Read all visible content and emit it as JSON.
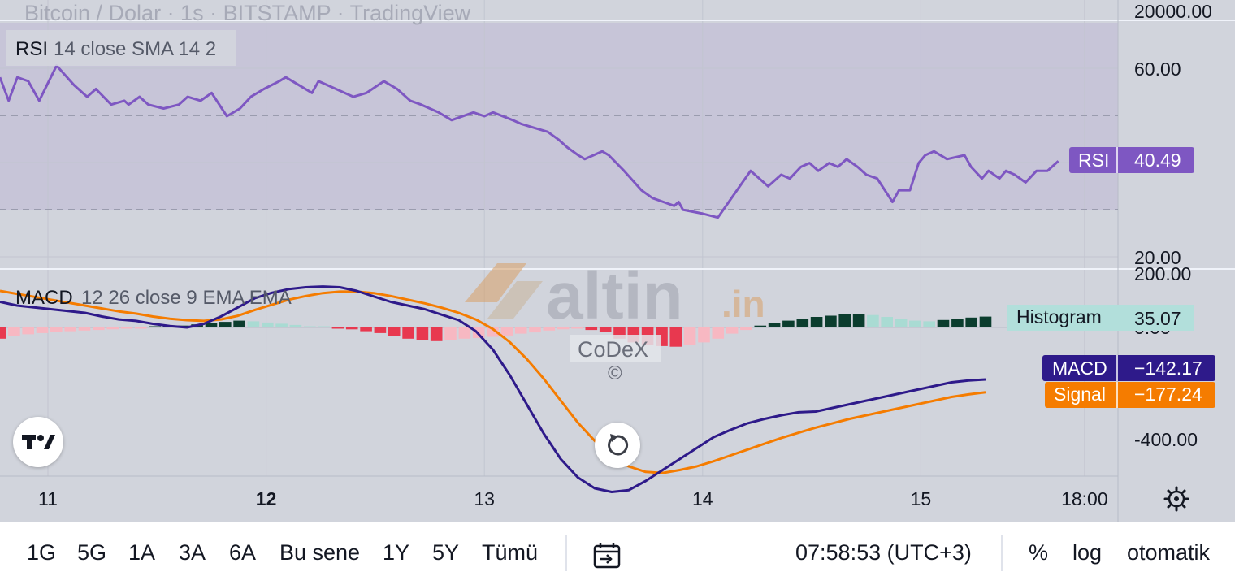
{
  "header": {
    "title_faded": "Bitcoin / Dolar · 1s · BITSTAMP · TradingView",
    "top_price_label": "20000.00"
  },
  "rsi": {
    "legend": "RSI",
    "params": "14 close SMA 14 2",
    "axis_labels": [
      "60.00",
      "20.00"
    ],
    "tag_label": "RSI",
    "tag_value": "40.49",
    "color": "#7e57c2"
  },
  "macd": {
    "legend": "MACD",
    "params": "12 26 close 9 EMA EMA",
    "axis_labels": [
      "200.00",
      "0.00",
      "-400.00"
    ],
    "hist_tag_label": "Histogram",
    "hist_tag_value": "35.07",
    "macd_tag_label": "MACD",
    "macd_tag_value": "−142.17",
    "signal_tag_label": "Signal",
    "signal_tag_value": "−177.24",
    "macd_color": "#2e1a8a",
    "signal_color": "#f57c00"
  },
  "watermark": {
    "brand_main": "altin",
    "brand_suffix": ".in",
    "codex": "CoDeX",
    "copyright": "©"
  },
  "time_axis": {
    "labels": [
      "11",
      "12",
      "13",
      "14",
      "15",
      "18:00"
    ]
  },
  "bottom_bar": {
    "ranges": [
      "1G",
      "5G",
      "1A",
      "3A",
      "6A",
      "Bu sene",
      "1Y",
      "5Y",
      "Tümü"
    ],
    "clock": "07:58:53 (UTC+3)",
    "percent": "%",
    "log": "log",
    "auto": "otomatik"
  },
  "icons": {
    "logo": "tradingview-logo-icon",
    "reset": "reset-chart-icon",
    "settings": "settings-gear-icon",
    "goto_date": "calendar-goto-icon"
  },
  "chart_data": [
    {
      "type": "line",
      "name": "RSI",
      "ylim": [
        13,
        76
      ],
      "band": [
        30,
        50
      ],
      "x_ticks": [
        "11",
        "12",
        "13",
        "14",
        "15",
        "18:00"
      ],
      "x_tick_values": [
        0.5,
        1.5,
        2.5,
        3.5,
        4.5,
        5.25
      ],
      "xlim": [
        0.28,
        5.4
      ],
      "x": [
        0.28,
        0.32,
        0.36,
        0.41,
        0.46,
        0.54,
        0.62,
        0.68,
        0.72,
        0.79,
        0.85,
        0.87,
        0.92,
        0.96,
        1.03,
        1.1,
        1.14,
        1.2,
        1.25,
        1.32,
        1.38,
        1.43,
        1.49,
        1.56,
        1.59,
        1.65,
        1.71,
        1.74,
        1.82,
        1.9,
        1.96,
        2.04,
        2.1,
        2.16,
        2.21,
        2.25,
        2.29,
        2.35,
        2.45,
        2.5,
        2.54,
        2.63,
        2.67,
        2.73,
        2.79,
        2.84,
        2.88,
        2.93,
        2.96,
        3.04,
        3.07,
        3.14,
        3.22,
        3.27,
        3.32,
        3.37,
        3.39,
        3.41,
        3.5,
        3.57,
        3.62,
        3.67,
        3.72,
        3.8,
        3.86,
        3.9,
        3.95,
        3.99,
        4.03,
        4.08,
        4.12,
        4.16,
        4.21,
        4.25,
        4.3,
        4.37,
        4.4,
        4.45,
        4.49,
        4.52,
        4.56,
        4.62,
        4.7,
        4.73,
        4.78,
        4.81,
        4.86,
        4.89,
        4.93,
        4.98,
        5.03,
        5.08,
        5.13
      ],
      "values": [
        62,
        56,
        62,
        61,
        56,
        65,
        60,
        57,
        59,
        55,
        56,
        55,
        57,
        55,
        54,
        55,
        57,
        56,
        58,
        52,
        54,
        57,
        59,
        61,
        62,
        60,
        58,
        61,
        59,
        57,
        58,
        61,
        59,
        56,
        55,
        54,
        53,
        51,
        53,
        52,
        53,
        51,
        50,
        49,
        48,
        46,
        44,
        42,
        41,
        43,
        42,
        38,
        33,
        31,
        30,
        29,
        30,
        28,
        27,
        26,
        30,
        34,
        38,
        34,
        37,
        36,
        39,
        40,
        38,
        40,
        39,
        41,
        39,
        37,
        36,
        30,
        33,
        33,
        40,
        42,
        43,
        41,
        42,
        39,
        36,
        38,
        36,
        38,
        37,
        35,
        38,
        38,
        40.49
      ]
    },
    {
      "type": "bar",
      "name": "Histogram",
      "ylim": [
        -450,
        250
      ],
      "bars": [
        -36,
        -28,
        -22,
        -18,
        -14,
        -12,
        -10,
        -8,
        -6,
        -4,
        -2,
        2,
        4,
        6,
        10,
        14,
        18,
        22,
        20,
        16,
        12,
        8,
        4,
        2,
        -2,
        -6,
        -12,
        -18,
        -28,
        -36,
        -40,
        -44,
        -40,
        -36,
        -34,
        -30,
        -26,
        -20,
        -16,
        -10,
        -6,
        -4,
        -8,
        -14,
        -36,
        -48,
        -56,
        -60,
        -62,
        -56,
        -48,
        -36,
        -20,
        -8,
        6,
        14,
        22,
        28,
        34,
        38,
        42,
        44,
        40,
        34,
        28,
        22,
        20,
        24,
        28,
        32,
        35.07
      ]
    },
    {
      "type": "line",
      "name": "MACD",
      "ylim": [
        -450,
        250
      ],
      "values": [
        70,
        60,
        55,
        50,
        45,
        40,
        30,
        22,
        18,
        10,
        4,
        0,
        10,
        30,
        55,
        80,
        95,
        105,
        110,
        112,
        110,
        100,
        85,
        70,
        60,
        50,
        35,
        20,
        -10,
        -60,
        -130,
        -210,
        -290,
        -360,
        -410,
        -440,
        -450,
        -445,
        -420,
        -390,
        -360,
        -330,
        -300,
        -280,
        -262,
        -250,
        -240,
        -232,
        -230,
        -220,
        -210,
        -200,
        -190,
        -180,
        -170,
        -160,
        -150,
        -145,
        -142.17
      ],
      "signal": [
        100,
        92,
        84,
        76,
        68,
        60,
        52,
        44,
        38,
        30,
        24,
        20,
        18,
        22,
        32,
        48,
        62,
        76,
        86,
        94,
        98,
        98,
        94,
        86,
        76,
        66,
        54,
        40,
        22,
        -4,
        -40,
        -86,
        -140,
        -200,
        -260,
        -310,
        -350,
        -380,
        -395,
        -398,
        -390,
        -380,
        -366,
        -350,
        -334,
        -318,
        -302,
        -288,
        -274,
        -262,
        -250,
        -240,
        -230,
        -220,
        -210,
        -200,
        -190,
        -183,
        -177.24
      ]
    }
  ]
}
